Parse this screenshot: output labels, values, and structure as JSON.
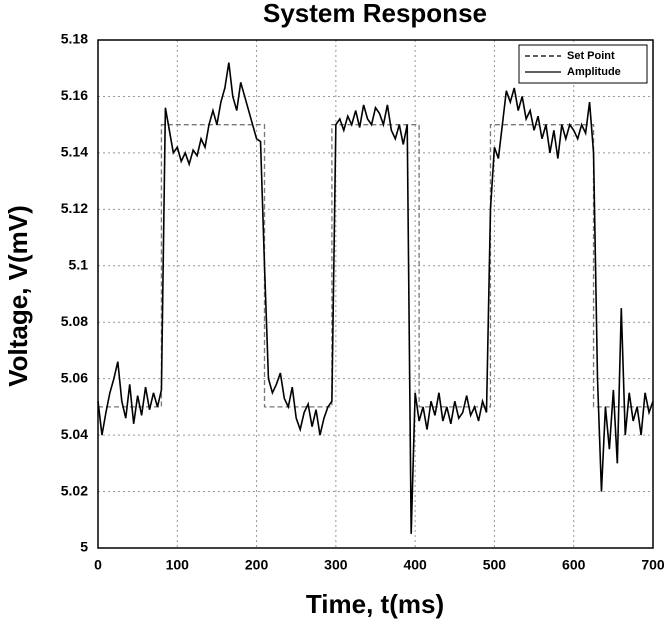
{
  "chart_data": {
    "type": "line",
    "title": "System Response",
    "x_label": "Time, t(ms)",
    "y_label": "Voltage, V(mV)",
    "xlim": [
      0,
      700
    ],
    "xticks": [
      0,
      100,
      200,
      300,
      400,
      500,
      600,
      700
    ],
    "ylim": [
      5,
      5.18
    ],
    "yticks": [
      5,
      5.02,
      5.04,
      5.06,
      5.08,
      5.1,
      5.12,
      5.14,
      5.16,
      5.18
    ],
    "grid": true,
    "legend": "upper right",
    "series": [
      {
        "name": "Set Point",
        "color": "#777777",
        "dashed": true,
        "x": [
          0,
          80,
          80,
          210,
          210,
          295,
          295,
          405,
          405,
          495,
          495,
          625,
          625,
          700
        ],
        "values": [
          5.05,
          5.05,
          5.15,
          5.15,
          5.05,
          5.05,
          5.15,
          5.15,
          5.05,
          5.05,
          5.15,
          5.15,
          5.05,
          5.05
        ]
      },
      {
        "name": "Amplitude",
        "color": "#000000",
        "dashed": false,
        "x": [
          0,
          5,
          10,
          15,
          20,
          25,
          30,
          35,
          40,
          45,
          50,
          55,
          60,
          65,
          70,
          75,
          80,
          85,
          90,
          95,
          100,
          105,
          110,
          115,
          120,
          125,
          130,
          135,
          140,
          145,
          150,
          155,
          160,
          165,
          170,
          175,
          180,
          185,
          190,
          195,
          200,
          205,
          210,
          215,
          220,
          225,
          230,
          235,
          240,
          245,
          250,
          255,
          260,
          265,
          270,
          275,
          280,
          285,
          290,
          295,
          300,
          305,
          310,
          315,
          320,
          325,
          330,
          335,
          340,
          345,
          350,
          355,
          360,
          365,
          370,
          375,
          380,
          385,
          390,
          395,
          400,
          405,
          410,
          415,
          420,
          425,
          430,
          435,
          440,
          445,
          450,
          455,
          460,
          465,
          470,
          475,
          480,
          485,
          490,
          495,
          500,
          505,
          510,
          515,
          520,
          525,
          530,
          535,
          540,
          545,
          550,
          555,
          560,
          565,
          570,
          575,
          580,
          585,
          590,
          595,
          600,
          605,
          610,
          615,
          620,
          625,
          630,
          635,
          640,
          645,
          650,
          655,
          660,
          665,
          670,
          675,
          680,
          685,
          690,
          695,
          700
        ],
        "values": [
          5.052,
          5.04,
          5.048,
          5.055,
          5.06,
          5.066,
          5.052,
          5.046,
          5.058,
          5.044,
          5.054,
          5.047,
          5.057,
          5.049,
          5.055,
          5.05,
          5.056,
          5.156,
          5.148,
          5.14,
          5.142,
          5.137,
          5.14,
          5.136,
          5.141,
          5.139,
          5.145,
          5.142,
          5.15,
          5.155,
          5.15,
          5.158,
          5.163,
          5.172,
          5.16,
          5.155,
          5.165,
          5.16,
          5.155,
          5.15,
          5.145,
          5.144,
          5.1,
          5.06,
          5.055,
          5.058,
          5.062,
          5.053,
          5.05,
          5.057,
          5.046,
          5.042,
          5.048,
          5.051,
          5.043,
          5.049,
          5.04,
          5.046,
          5.05,
          5.052,
          5.15,
          5.152,
          5.148,
          5.153,
          5.15,
          5.155,
          5.149,
          5.157,
          5.152,
          5.15,
          5.156,
          5.154,
          5.15,
          5.157,
          5.148,
          5.145,
          5.15,
          5.143,
          5.15,
          5.005,
          5.055,
          5.045,
          5.05,
          5.042,
          5.052,
          5.047,
          5.055,
          5.045,
          5.05,
          5.044,
          5.052,
          5.046,
          5.048,
          5.054,
          5.047,
          5.05,
          5.045,
          5.052,
          5.048,
          5.12,
          5.142,
          5.138,
          5.15,
          5.162,
          5.158,
          5.163,
          5.155,
          5.16,
          5.152,
          5.155,
          5.148,
          5.153,
          5.145,
          5.15,
          5.14,
          5.148,
          5.138,
          5.15,
          5.145,
          5.15,
          5.148,
          5.145,
          5.15,
          5.147,
          5.158,
          5.14,
          5.06,
          5.02,
          5.05,
          5.035,
          5.056,
          5.03,
          5.085,
          5.04,
          5.055,
          5.045,
          5.05,
          5.04,
          5.055,
          5.048,
          5.052
        ]
      }
    ]
  }
}
